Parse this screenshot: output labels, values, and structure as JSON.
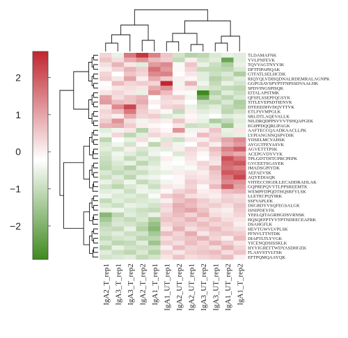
{
  "chart_data": {
    "type": "heatmap",
    "columns": [
      "IgA2_T_rep1",
      "IgA3_T_rep1",
      "IgA3_T_rep2",
      "IgA2_T_rep2",
      "IgA1_T_rep1",
      "IgA1_UT_rep1",
      "IgA2_UT_rep2",
      "IgA2_UT_rep1",
      "IgA3_UT_rep2",
      "IgA3_UT_rep1",
      "IgA1_UT_rep2",
      "IgA1_T_rep2"
    ],
    "rows": [
      "TLDAMAFNK",
      "YVLPNFEVK",
      "TQVVAGTNYYIK",
      "DFTFIPAPIQAK",
      "GTFATLSELHCDK",
      "RIQYQLVDISQDNALRDEMRALAGNPK",
      "GGPGSAVSPYPTFNPSSDVAALHK",
      "SPDVINGSPISQK",
      "EITALAPSTMK",
      "QFSFLSSEPFQGSYK",
      "TITLEVEPSDTIENVK",
      "DTEEEDHVDQVTTVK",
      "ETLFSVMPGLK",
      "SRLDTLAQEVALLK",
      "NILDRQDPPSVVVTSHQAPGEK",
      "EGIPPDQQRLIFAGK",
      "AAFTECCQAADKAACLLPK",
      "LYPIANGNNQSPVDIK",
      "YDSELMCYAHSK",
      "AYGGTFEYASVK",
      "AGVETTTPSK",
      "ACEPGVDYVYK",
      "TPLGDTTHTCPRCPEPK",
      "GVCEETSGAYEK",
      "IMADSGPIYDK",
      "AEFAEVSK",
      "AQYEDIAQK",
      "VHTECCHGDLLECADDRADLAK",
      "GQPREPQVYTLPPSREEMTK",
      "WEMPFDPQDTHQSRFYLSK",
      "LLETECPQYIRK",
      "SSFVAPLEK",
      "DSGRDYVSQFEGSALGK",
      "ISNIPDEYFK",
      "YEELQITAGRHGDSVRNSK",
      "HQSQEFPTYVTPTNDEECEAFRK",
      "DSAHGFLK",
      "HEVTGWVLVPLSK",
      "FFNVLTTNTDK",
      "DIAPTLTLYVGK",
      "YICENQDSISSKLK",
      "HYYIGIIETTWDYASDHGEK",
      "FLASVSTVLTSK",
      "EFTPQMQAAYQK"
    ],
    "values": [
      [
        0.5,
        -0.3,
        1.6,
        2.4,
        1.5,
        0.7,
        -0.6,
        -1.0,
        -0.9,
        -0.5,
        -0.3,
        -0.4
      ],
      [
        0.7,
        0.4,
        1.0,
        1.3,
        0.8,
        0.6,
        -0.8,
        0.2,
        -0.6,
        -0.4,
        -2.0,
        -0.4
      ],
      [
        0.4,
        0.9,
        0.3,
        -0.4,
        1.2,
        1.4,
        -0.1,
        0.7,
        -0.3,
        -0.7,
        -1.1,
        -0.3
      ],
      [
        0.2,
        0.5,
        0.9,
        0.6,
        1.7,
        1.2,
        0.1,
        0.5,
        -0.8,
        -0.8,
        -0.9,
        -0.5
      ],
      [
        0.5,
        0.0,
        0.7,
        0.5,
        1.4,
        1.5,
        0.0,
        0.3,
        -0.4,
        -0.7,
        -0.5,
        -1.1
      ],
      [
        0.6,
        0.3,
        1.1,
        0.2,
        1.0,
        0.6,
        0.2,
        0.1,
        -0.4,
        -1.0,
        -0.7,
        -0.4
      ],
      [
        0.0,
        0.8,
        0.5,
        0.6,
        0.5,
        2.6,
        -0.2,
        0.9,
        -0.2,
        -0.8,
        -0.3,
        -0.6
      ],
      [
        0.1,
        0.3,
        0.4,
        0.3,
        1.0,
        1.3,
        0.2,
        0.3,
        -0.5,
        -0.6,
        -0.8,
        -0.9
      ],
      [
        0.3,
        0.5,
        0.3,
        -0.3,
        1.3,
        0.8,
        0.1,
        -0.1,
        -2.6,
        -1.0,
        -0.4,
        -0.7
      ],
      [
        1.1,
        0.4,
        0.7,
        0.9,
        0.0,
        0.5,
        0.6,
        -0.2,
        -1.9,
        -0.6,
        -0.9,
        -0.5
      ],
      [
        1.2,
        0.8,
        0.7,
        1.0,
        0.2,
        0.4,
        0.3,
        0.0,
        -0.8,
        -0.9,
        -0.5,
        -1.1
      ],
      [
        0.3,
        1.4,
        2.2,
        0.7,
        0.0,
        0.5,
        0.6,
        -0.3,
        -0.6,
        -0.4,
        -0.8,
        -1.0
      ],
      [
        0.5,
        0.8,
        1.6,
        0.6,
        0.3,
        0.1,
        -0.8,
        0.2,
        -0.4,
        -0.3,
        -0.9,
        -0.6
      ],
      [
        0.4,
        0.2,
        1.0,
        0.5,
        0.6,
        -0.5,
        -0.3,
        0.1,
        -0.2,
        0.0,
        -0.4,
        -0.3
      ],
      [
        0.6,
        1.3,
        0.4,
        -0.2,
        0.3,
        0.2,
        0.7,
        0.2,
        -0.3,
        -1.1,
        -0.8,
        -0.4
      ],
      [
        0.9,
        1.0,
        0.6,
        0.2,
        0.1,
        0.0,
        0.3,
        -0.7,
        -0.6,
        -0.4,
        -1.3,
        -0.3
      ],
      [
        -0.4,
        -0.2,
        0.3,
        -1.0,
        0.3,
        0.1,
        1.3,
        -0.2,
        0.2,
        0.7,
        -0.3,
        0.3
      ],
      [
        -0.2,
        0.5,
        -0.9,
        -0.4,
        0.5,
        0.3,
        0.2,
        0.1,
        0.8,
        0.5,
        -0.4,
        -0.3
      ],
      [
        -0.9,
        0.0,
        -0.3,
        0.4,
        -0.1,
        -0.5,
        -0.7,
        0.3,
        0.2,
        0.6,
        1.1,
        1.4
      ],
      [
        -0.5,
        -0.2,
        -0.6,
        0.1,
        -0.9,
        0.4,
        -0.2,
        0.0,
        0.6,
        0.2,
        0.9,
        1.2
      ],
      [
        -0.4,
        -0.6,
        0.2,
        -0.5,
        -0.3,
        -0.4,
        0.2,
        0.5,
        0.3,
        0.8,
        1.5,
        1.9
      ],
      [
        -0.6,
        -0.2,
        -0.4,
        -0.7,
        -0.2,
        0.0,
        -0.5,
        0.4,
        0.1,
        0.6,
        1.2,
        1.0
      ],
      [
        -0.7,
        -0.3,
        -0.8,
        -0.4,
        -0.6,
        0.2,
        -0.1,
        0.3,
        0.0,
        0.4,
        2.1,
        1.6
      ],
      [
        -0.8,
        -0.5,
        -0.3,
        -0.9,
        -0.5,
        -0.1,
        0.0,
        0.2,
        0.5,
        0.3,
        1.8,
        2.0
      ],
      [
        -0.9,
        -0.6,
        -1.0,
        -0.4,
        -0.3,
        0.1,
        -0.2,
        -0.1,
        0.4,
        0.9,
        1.7,
        1.5
      ],
      [
        -0.5,
        -0.8,
        -0.6,
        -0.7,
        -0.4,
        -0.3,
        0.2,
        0.3,
        0.2,
        0.7,
        2.0,
        1.9
      ],
      [
        -0.7,
        -0.4,
        -0.9,
        -0.3,
        -0.2,
        0.0,
        0.1,
        0.4,
        0.3,
        0.6,
        1.6,
        2.2
      ],
      [
        -0.3,
        -0.6,
        -0.2,
        -0.8,
        -0.5,
        -0.2,
        0.1,
        0.6,
        0.4,
        0.5,
        1.4,
        1.3
      ],
      [
        -0.6,
        -0.9,
        -0.5,
        -0.3,
        -0.7,
        0.3,
        0.2,
        0.5,
        0.1,
        0.8,
        1.9,
        1.1
      ],
      [
        -0.4,
        -0.3,
        -0.7,
        -0.2,
        -0.3,
        0.1,
        0.5,
        0.7,
        0.2,
        0.3,
        0.8,
        0.9
      ],
      [
        -0.2,
        -0.5,
        -0.4,
        -0.6,
        -0.1,
        0.6,
        0.8,
        0.4,
        0.3,
        0.2,
        0.5,
        0.4
      ],
      [
        -0.8,
        -0.4,
        -0.6,
        -0.5,
        -0.4,
        0.2,
        0.7,
        0.9,
        0.6,
        0.4,
        0.6,
        0.5
      ],
      [
        -0.5,
        -0.7,
        -0.3,
        -0.4,
        -0.6,
        0.5,
        1.0,
        0.8,
        0.5,
        0.6,
        0.4,
        0.7
      ],
      [
        -0.3,
        -0.2,
        -0.5,
        -0.7,
        -0.8,
        0.4,
        0.9,
        1.1,
        0.7,
        0.3,
        0.2,
        0.6
      ],
      [
        -1.6,
        -0.9,
        -0.4,
        -0.6,
        -0.3,
        0.6,
        0.8,
        0.5,
        0.9,
        0.4,
        0.3,
        0.5
      ],
      [
        -1.2,
        -0.6,
        -0.8,
        -0.5,
        -1.1,
        0.7,
        0.6,
        0.9,
        0.5,
        0.7,
        0.4,
        0.3
      ],
      [
        -0.9,
        -0.5,
        -0.6,
        -0.8,
        -1.4,
        0.5,
        0.7,
        0.6,
        0.8,
        0.5,
        0.6,
        0.2
      ],
      [
        -0.7,
        -0.8,
        -0.3,
        -1.0,
        -1.6,
        0.3,
        0.9,
        0.4,
        0.6,
        0.8,
        0.5,
        0.4
      ],
      [
        -0.6,
        -0.4,
        -0.7,
        -0.6,
        -1.2,
        0.8,
        0.5,
        1.0,
        0.3,
        0.6,
        0.7,
        0.6
      ],
      [
        -0.8,
        -0.6,
        -0.5,
        -0.9,
        -0.9,
        0.4,
        0.6,
        0.7,
        0.9,
        0.5,
        0.2,
        0.8
      ],
      [
        -0.5,
        -0.9,
        -0.8,
        -0.4,
        -1.3,
        0.6,
        0.4,
        0.8,
        0.5,
        0.9,
        0.6,
        0.3
      ],
      [
        -0.9,
        -0.3,
        -0.6,
        -0.7,
        -0.7,
        0.2,
        0.8,
        0.5,
        0.6,
        0.4,
        0.9,
        0.5
      ],
      [
        -0.4,
        -0.7,
        -0.9,
        -0.5,
        -1.0,
        0.5,
        0.3,
        0.6,
        0.7,
        0.8,
        0.4,
        0.7
      ],
      [
        -0.6,
        -0.5,
        -0.4,
        -0.8,
        -0.6,
        0.3,
        0.7,
        0.4,
        0.5,
        0.6,
        0.8,
        0.2
      ]
    ],
    "colorbar": {
      "ticks": [
        2,
        1,
        0,
        -1,
        -2
      ],
      "range": [
        -2.9,
        2.7
      ]
    },
    "colors": {
      "low": "#3f8a1f",
      "mid": "#ffffff",
      "high": "#c0262f"
    },
    "dendrogram_color": "#111111"
  }
}
